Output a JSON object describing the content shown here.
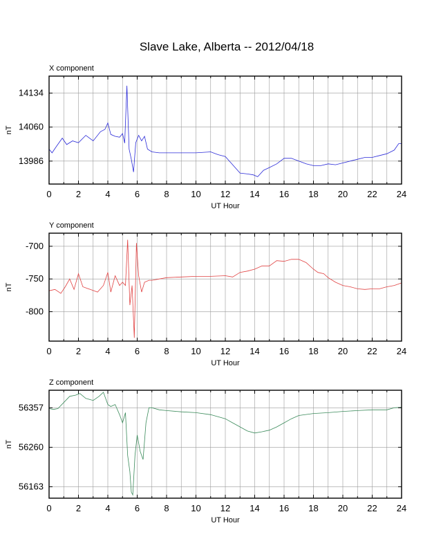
{
  "page": {
    "title": "Slave Lake, Alberta -- 2012/04/18"
  },
  "chart_data": [
    {
      "type": "line",
      "panel_label": "X component",
      "xlabel": "UT Hour",
      "ylabel": "nT",
      "xlim": [
        0,
        24
      ],
      "ylim": [
        13936,
        14171
      ],
      "x_ticks": [
        0,
        2,
        4,
        6,
        8,
        10,
        12,
        14,
        16,
        18,
        20,
        22,
        24
      ],
      "y_ticks": [
        13986,
        14060,
        14134
      ],
      "grid": true,
      "color": "#2a2ad8",
      "series": [
        {
          "x": [
            0,
            0.2,
            0.5,
            0.9,
            1.2,
            1.6,
            2.0,
            2.5,
            3.0,
            3.5,
            3.8,
            4.0,
            4.2,
            4.5,
            4.8,
            5.0,
            5.15,
            5.3,
            5.45,
            5.6,
            5.75,
            5.9,
            6.1,
            6.3,
            6.5,
            6.7,
            7.0,
            7.5,
            8.0,
            9.0,
            10.0,
            11.0,
            11.5,
            12.0,
            12.5,
            13.0,
            13.5,
            13.9,
            14.2,
            14.6,
            15.0,
            15.5,
            16.0,
            16.5,
            17.0,
            17.5,
            18.0,
            18.5,
            19.0,
            19.5,
            20.0,
            20.5,
            21.0,
            21.5,
            22.0,
            22.5,
            23.0,
            23.5,
            23.8,
            24.0
          ],
          "y": [
            14012,
            14004,
            14018,
            14036,
            14022,
            14030,
            14026,
            14042,
            14030,
            14050,
            14055,
            14069,
            14044,
            14040,
            14038,
            14046,
            14025,
            14150,
            14012,
            13990,
            13962,
            14026,
            14042,
            14030,
            14040,
            14012,
            14006,
            14004,
            14004,
            14004,
            14004,
            14006,
            14000,
            13996,
            13978,
            13960,
            13958,
            13956,
            13952,
            13966,
            13972,
            13980,
            13992,
            13992,
            13986,
            13980,
            13976,
            13976,
            13980,
            13978,
            13982,
            13986,
            13990,
            13994,
            13994,
            13998,
            14002,
            14010,
            14024,
            14024
          ]
        }
      ]
    },
    {
      "type": "line",
      "panel_label": "Y component",
      "xlabel": "UT Hour",
      "ylabel": "nT",
      "xlim": [
        0,
        24
      ],
      "ylim": [
        -845,
        -680
      ],
      "x_ticks": [
        0,
        2,
        4,
        6,
        8,
        10,
        12,
        14,
        16,
        18,
        20,
        22,
        24
      ],
      "y_ticks": [
        -700,
        -750,
        -800
      ],
      "grid": true,
      "color": "#e04040",
      "series": [
        {
          "x": [
            0,
            0.4,
            0.8,
            1.1,
            1.4,
            1.7,
            2.0,
            2.3,
            2.8,
            3.3,
            3.7,
            4.0,
            4.2,
            4.5,
            4.8,
            5.0,
            5.2,
            5.35,
            5.5,
            5.65,
            5.8,
            5.95,
            6.1,
            6.3,
            6.5,
            6.8,
            7.0,
            7.5,
            8.0,
            9.0,
            10.0,
            11.0,
            12.0,
            12.5,
            13.0,
            13.5,
            14.0,
            14.5,
            15.0,
            15.5,
            16.0,
            16.5,
            17.0,
            17.5,
            18.0,
            18.3,
            18.7,
            19.0,
            19.5,
            20.0,
            20.5,
            21.0,
            21.5,
            22.0,
            22.5,
            23.0,
            23.5,
            24.0
          ],
          "y": [
            -768,
            -766,
            -772,
            -762,
            -750,
            -766,
            -742,
            -762,
            -766,
            -770,
            -760,
            -740,
            -770,
            -745,
            -760,
            -755,
            -760,
            -690,
            -790,
            -760,
            -840,
            -695,
            -745,
            -770,
            -755,
            -752,
            -752,
            -750,
            -748,
            -747,
            -746,
            -746,
            -745,
            -747,
            -740,
            -738,
            -735,
            -730,
            -730,
            -722,
            -723,
            -720,
            -720,
            -725,
            -735,
            -740,
            -742,
            -748,
            -755,
            -760,
            -762,
            -765,
            -766,
            -765,
            -765,
            -762,
            -760,
            -756
          ]
        }
      ]
    },
    {
      "type": "line",
      "panel_label": "Z component",
      "xlabel": "UT Hour",
      "ylabel": "nT",
      "xlim": [
        0,
        24
      ],
      "ylim": [
        56135,
        56400
      ],
      "x_ticks": [
        0,
        2,
        4,
        6,
        8,
        10,
        12,
        14,
        16,
        18,
        20,
        22,
        24
      ],
      "y_ticks": [
        56163,
        56260,
        56357
      ],
      "grid": true,
      "color": "#3a8a5a",
      "series": [
        {
          "x": [
            0,
            0.3,
            0.6,
            1.0,
            1.4,
            1.8,
            2.1,
            2.5,
            3.0,
            3.4,
            3.7,
            4.0,
            4.2,
            4.5,
            4.8,
            5.0,
            5.2,
            5.35,
            5.5,
            5.6,
            5.7,
            5.85,
            6.0,
            6.2,
            6.4,
            6.6,
            6.8,
            7.0,
            7.5,
            8.0,
            9.0,
            10.0,
            11.0,
            12.0,
            12.5,
            13.0,
            13.5,
            14.0,
            14.5,
            15.0,
            15.5,
            16.0,
            16.5,
            17.0,
            18.0,
            19.0,
            20.0,
            21.0,
            22.0,
            23.0,
            23.5,
            24.0
          ],
          "y": [
            56355,
            56353,
            56355,
            56370,
            56385,
            56388,
            56392,
            56380,
            56375,
            56385,
            56395,
            56365,
            56360,
            56365,
            56340,
            56320,
            56345,
            56240,
            56200,
            56150,
            56143,
            56240,
            56290,
            56250,
            56230,
            56320,
            56357,
            56357,
            56352,
            56350,
            56347,
            56345,
            56340,
            56330,
            56320,
            56310,
            56300,
            56295,
            56298,
            56302,
            56310,
            56320,
            56330,
            56338,
            56343,
            56345,
            56348,
            56350,
            56352,
            56352,
            56357,
            56358
          ]
        }
      ]
    }
  ]
}
